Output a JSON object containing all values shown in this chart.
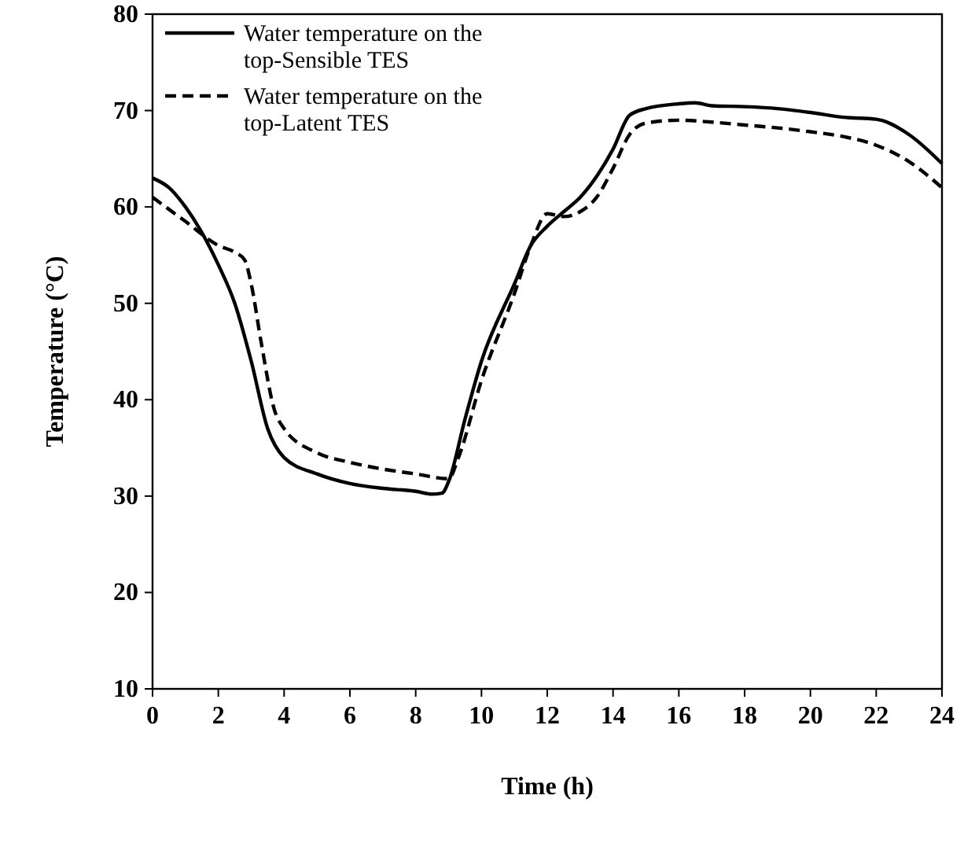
{
  "chart_data": {
    "type": "line",
    "xlabel": "Time (h)",
    "ylabel": "Temperature (°C)",
    "xlim": [
      0,
      24
    ],
    "ylim": [
      10,
      80
    ],
    "xticks": [
      0,
      2,
      4,
      6,
      8,
      10,
      12,
      14,
      16,
      18,
      20,
      22,
      24
    ],
    "yticks": [
      10,
      20,
      30,
      40,
      50,
      60,
      70,
      80
    ],
    "legend": "top left",
    "grid": false,
    "series": [
      {
        "name": "Water temperature on the top-Sensible TES",
        "color": "#000000",
        "line_style": "solid",
        "x": [
          0,
          0.5,
          1,
          2,
          2.5,
          3,
          3.5,
          4,
          5,
          6,
          7,
          8,
          8.5,
          8.8,
          9,
          9.5,
          10,
          11,
          11.5,
          12,
          12.5,
          13,
          14,
          14.5,
          15,
          16,
          16.5,
          17,
          18,
          19,
          20,
          21,
          22,
          23,
          24
        ],
        "values": [
          63,
          62,
          60,
          54,
          50,
          44,
          37,
          34,
          32.3,
          31.3,
          30.8,
          30.5,
          30.2,
          30.3,
          31.5,
          38,
          44,
          52,
          56,
          58,
          59.5,
          61,
          66,
          69.5,
          70.2,
          70.7,
          70.8,
          70.5,
          70.4,
          70.2,
          69.8,
          69.3,
          69.1,
          67.5,
          64.5
        ]
      },
      {
        "name": "Water temperature on the top-Latent TES",
        "color": "#000000",
        "line_style": "dashed",
        "x": [
          0,
          1,
          2,
          2.5,
          2.8,
          3,
          3.3,
          3.7,
          4,
          5,
          6,
          7,
          8,
          9,
          9.3,
          10,
          11,
          11.5,
          12,
          12.5,
          13,
          13.5,
          14,
          14.5,
          15,
          16,
          17,
          18,
          19,
          20,
          21,
          22,
          23,
          24
        ],
        "values": [
          61,
          58.5,
          56,
          55.3,
          54.5,
          52,
          46,
          39,
          37,
          34.5,
          33.5,
          32.8,
          32.3,
          31.8,
          34,
          42,
          51,
          56,
          59.3,
          59,
          59.5,
          61,
          64,
          67.5,
          68.7,
          69,
          68.8,
          68.5,
          68.2,
          67.8,
          67.3,
          66.4,
          64.7,
          62
        ]
      }
    ]
  }
}
